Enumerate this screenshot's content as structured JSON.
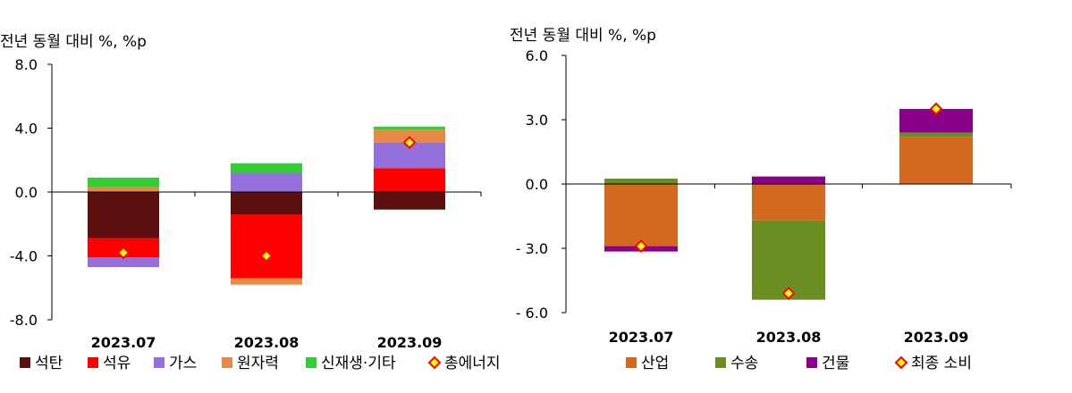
{
  "chart_data": [
    {
      "type": "bar",
      "stacked": true,
      "ylabel": "전년 동월 대비 %, %p",
      "categories": [
        "2023.07",
        "2023.08",
        "2023.09"
      ],
      "ylim": [
        -8.0,
        8.0
      ],
      "yticks": [
        8.0,
        4.0,
        0.0,
        -4.0,
        -8.0
      ],
      "ytick_labels": [
        "8.0",
        "4.0",
        "0.0",
        "-4.0",
        "-8.0"
      ],
      "legend_position": "bottom",
      "grid": false,
      "series": [
        {
          "name": "석탄",
          "color": "#5C0F0F",
          "values": [
            -2.9,
            -1.4,
            -1.1
          ]
        },
        {
          "name": "석유",
          "color": "#FF0000",
          "values": [
            -1.2,
            -4.0,
            1.5
          ]
        },
        {
          "name": "가스",
          "color": "#9370DB",
          "values": [
            -0.6,
            1.2,
            1.6
          ]
        },
        {
          "name": "원자력",
          "color": "#E68A45",
          "values": [
            0.3,
            -0.4,
            0.8
          ]
        },
        {
          "name": "신재생·기타",
          "color": "#33CC33",
          "values": [
            0.6,
            0.6,
            0.2
          ]
        }
      ],
      "marker_series": {
        "name": "총에너지",
        "values": [
          -3.8,
          -4.0,
          3.1
        ]
      }
    },
    {
      "type": "bar",
      "stacked": true,
      "ylabel": "전년 동월 대비 %, %p",
      "categories": [
        "2023.07",
        "2023.08",
        "2023.09"
      ],
      "ylim": [
        -6.0,
        6.0
      ],
      "yticks": [
        6.0,
        3.0,
        0.0,
        -3.0,
        -6.0
      ],
      "ytick_labels": [
        "6.0",
        "3.0",
        "0.0",
        "- 3.0",
        "- 6.0"
      ],
      "legend_position": "bottom",
      "grid": false,
      "series": [
        {
          "name": "산업",
          "color": "#D2691E",
          "values": [
            -2.9,
            -1.7,
            2.2
          ]
        },
        {
          "name": "수송",
          "color": "#6B8E23",
          "values": [
            0.25,
            -3.7,
            0.2
          ]
        },
        {
          "name": "건물",
          "color": "#8B008B",
          "values": [
            -0.25,
            0.35,
            1.1
          ]
        }
      ],
      "marker_series": {
        "name": "최종 소비",
        "values": [
          -2.9,
          -5.1,
          3.5
        ]
      }
    }
  ]
}
